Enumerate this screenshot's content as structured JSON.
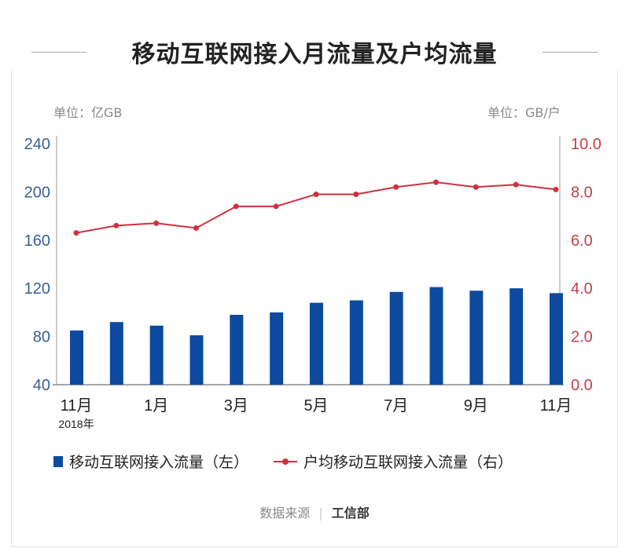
{
  "chart_data": {
    "type": "bar+line",
    "title": "移动互联网接入月流量及户均流量",
    "left_unit": "单位：亿GB",
    "right_unit": "单位：GB/户",
    "categories": [
      "2017-11",
      "2017-12",
      "2018-01",
      "2018-02",
      "2018-03",
      "2018-04",
      "2018-05",
      "2018-06",
      "2018-07",
      "2018-08",
      "2018-09",
      "2018-10",
      "2018-11"
    ],
    "x_tick_labels": [
      {
        "index": 0,
        "label": "11月"
      },
      {
        "index": 2,
        "label": "1月"
      },
      {
        "index": 4,
        "label": "3月"
      },
      {
        "index": 6,
        "label": "5月"
      },
      {
        "index": 8,
        "label": "7月"
      },
      {
        "index": 10,
        "label": "9月"
      },
      {
        "index": 12,
        "label": "11月"
      }
    ],
    "year_label": "2018年",
    "left_axis": {
      "ylim": [
        40,
        240
      ],
      "ticks": [
        "40",
        "80",
        "120",
        "160",
        "200",
        "240"
      ]
    },
    "right_axis": {
      "ylim": [
        0,
        10
      ],
      "ticks": [
        "0.0",
        "2.0",
        "4.0",
        "6.0",
        "8.0",
        "10.0"
      ]
    },
    "series": [
      {
        "name": "移动互联网接入流量（左）",
        "type": "bar",
        "axis": "left",
        "color": "#0d4a9e",
        "values": [
          85,
          92,
          89,
          81,
          98,
          100,
          108,
          110,
          117,
          121,
          118,
          120,
          116
        ]
      },
      {
        "name": "户均移动互联网接入流量（右）",
        "type": "line",
        "axis": "right",
        "color": "#d0303f",
        "values": [
          6.3,
          6.6,
          6.7,
          6.5,
          7.4,
          7.4,
          7.9,
          7.9,
          8.2,
          8.4,
          8.2,
          8.3,
          8.1
        ]
      }
    ],
    "source_label": "数据来源",
    "source": "工信部"
  }
}
